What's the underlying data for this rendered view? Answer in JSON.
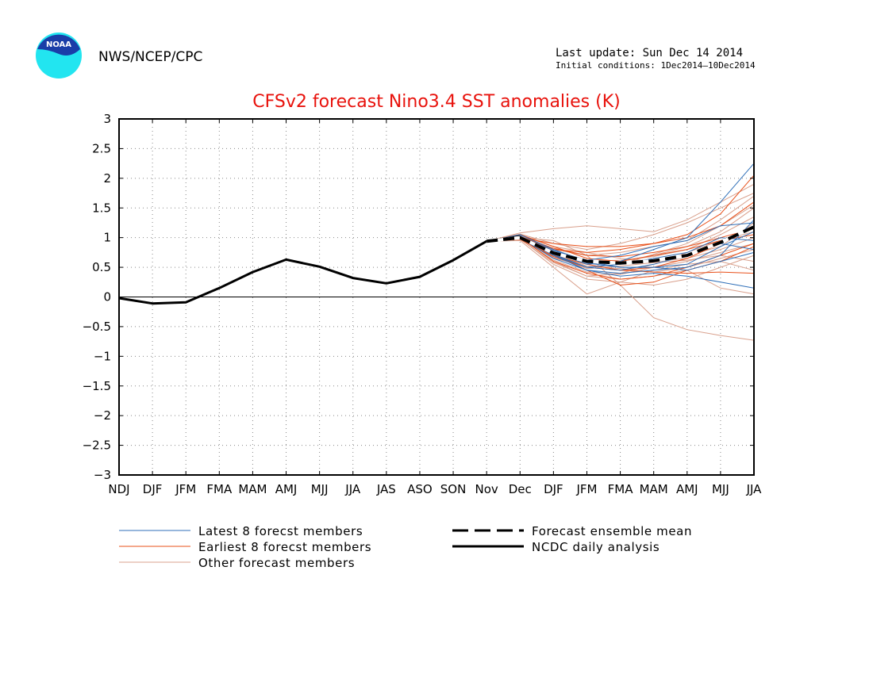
{
  "header": {
    "organization": "NWS/NCEP/CPC",
    "last_update": "Last update: Sun Dec 14 2014",
    "initial_conditions": "Initial conditions:  1Dec2014–10Dec2014",
    "logo_icon": "noaa-logo-icon",
    "logo_text": "NOAA"
  },
  "colors": {
    "title": "#e8120c",
    "latest": "#2f6fb8",
    "earliest": "#e8501a",
    "other": "#d9a08c",
    "analysis": "#000000"
  },
  "chart_data": {
    "type": "line",
    "title": "CFSv2 forecast Nino3.4 SST anomalies (K)",
    "xlabel": "",
    "ylabel": "",
    "ylim": [
      -3,
      3
    ],
    "yticks": [
      "3",
      "2.5",
      "2",
      "1.5",
      "1",
      "0.5",
      "0",
      "−0.5",
      "−1",
      "−1.5",
      "−2",
      "−2.5",
      "−3"
    ],
    "ytick_values": [
      3,
      2.5,
      2,
      1.5,
      1,
      0.5,
      0,
      -0.5,
      -1,
      -1.5,
      -2,
      -2.5,
      -3
    ],
    "categories": [
      "NDJ",
      "DJF",
      "JFM",
      "FMA",
      "MAM",
      "AMJ",
      "MJJ",
      "JJA",
      "JAS",
      "ASO",
      "SON",
      "Nov",
      "Dec",
      "DJF",
      "JFM",
      "FMA",
      "MAM",
      "AMJ",
      "MJJ",
      "JJA"
    ],
    "grid": true,
    "legend_position": "bottom",
    "legend": {
      "latest": "Latest 8 forecst members",
      "earliest": "Earliest 8 forecst members",
      "other": "Other forecast members",
      "mean": "Forecast ensemble mean",
      "analysis": "NCDC daily analysis"
    },
    "analysis": {
      "x": [
        0,
        1,
        2,
        3,
        4,
        5,
        6,
        7,
        8,
        9,
        10,
        11,
        12
      ],
      "values": [
        -0.02,
        -0.11,
        -0.09,
        0.15,
        0.42,
        0.63,
        0.51,
        0.32,
        0.23,
        0.34,
        0.62,
        0.94,
        1.02
      ]
    },
    "forecast_mean": {
      "x": [
        11,
        12,
        13,
        14,
        15,
        16,
        17,
        18,
        19
      ],
      "values": [
        0.94,
        1.0,
        0.74,
        0.6,
        0.57,
        0.61,
        0.7,
        0.92,
        1.18
      ]
    },
    "forecast_x": [
      11,
      12,
      13,
      14,
      15,
      16,
      17,
      18,
      19
    ],
    "latest_members": [
      [
        0.94,
        1.02,
        0.75,
        0.55,
        0.6,
        0.8,
        1.0,
        1.6,
        2.25
      ],
      [
        0.94,
        1.0,
        0.7,
        0.45,
        0.4,
        0.45,
        0.5,
        0.7,
        1.3
      ],
      [
        0.94,
        1.05,
        0.8,
        0.6,
        0.5,
        0.5,
        0.55,
        0.85,
        1.1
      ],
      [
        0.94,
        0.98,
        0.72,
        0.5,
        0.55,
        0.65,
        0.75,
        1.0,
        0.95
      ],
      [
        0.94,
        1.0,
        0.65,
        0.45,
        0.35,
        0.4,
        0.35,
        0.25,
        0.15
      ],
      [
        0.94,
        1.02,
        0.78,
        0.62,
        0.7,
        0.85,
        0.95,
        1.2,
        1.25
      ],
      [
        0.94,
        1.03,
        0.7,
        0.5,
        0.45,
        0.55,
        0.7,
        0.9,
        0.8
      ],
      [
        0.94,
        1.0,
        0.74,
        0.57,
        0.5,
        0.5,
        0.45,
        0.6,
        0.75
      ]
    ],
    "earliest_members": [
      [
        0.94,
        1.0,
        0.9,
        0.85,
        0.85,
        0.9,
        1.05,
        1.4,
        2.05
      ],
      [
        0.94,
        1.02,
        0.8,
        0.75,
        0.8,
        0.9,
        1.0,
        1.2,
        1.6
      ],
      [
        0.94,
        0.98,
        0.7,
        0.55,
        0.45,
        0.5,
        0.65,
        0.9,
        1.2
      ],
      [
        0.94,
        1.05,
        0.85,
        0.65,
        0.6,
        0.7,
        0.8,
        0.95,
        1.05
      ],
      [
        0.94,
        1.0,
        0.6,
        0.4,
        0.3,
        0.35,
        0.5,
        0.7,
        0.9
      ],
      [
        0.94,
        0.97,
        0.68,
        0.5,
        0.45,
        0.42,
        0.4,
        0.42,
        0.4
      ],
      [
        0.94,
        1.02,
        0.82,
        0.7,
        0.68,
        0.75,
        0.85,
        1.0,
        1.15
      ],
      [
        0.94,
        1.0,
        0.72,
        0.45,
        0.2,
        0.25,
        0.45,
        0.6,
        0.85
      ]
    ],
    "other_members": [
      [
        0.94,
        1.0,
        0.95,
        0.7,
        0.2,
        -0.35,
        -0.55,
        -0.65,
        -0.73
      ],
      [
        0.94,
        1.08,
        1.15,
        1.2,
        1.15,
        1.1,
        1.3,
        1.6,
        1.9
      ],
      [
        0.94,
        0.95,
        0.5,
        0.05,
        0.25,
        0.45,
        0.55,
        0.6,
        0.45
      ],
      [
        0.94,
        1.0,
        0.6,
        0.35,
        0.3,
        0.35,
        0.45,
        0.15,
        0.05
      ],
      [
        0.94,
        1.03,
        0.8,
        0.7,
        0.75,
        0.85,
        0.95,
        1.3,
        1.7
      ],
      [
        0.94,
        0.98,
        0.55,
        0.3,
        0.25,
        0.2,
        0.3,
        0.5,
        0.7
      ],
      [
        0.94,
        1.01,
        0.7,
        0.55,
        0.6,
        0.7,
        0.85,
        1.1,
        1.5
      ],
      [
        0.94,
        1.04,
        0.85,
        0.75,
        0.65,
        0.6,
        0.65,
        0.8,
        1.0
      ],
      [
        0.94,
        0.99,
        0.62,
        0.42,
        0.38,
        0.5,
        0.6,
        0.75,
        0.9
      ],
      [
        0.94,
        1.02,
        0.76,
        0.6,
        0.62,
        0.68,
        0.8,
        1.05,
        1.35
      ],
      [
        0.94,
        1.0,
        0.68,
        0.48,
        0.52,
        0.58,
        0.62,
        0.7,
        0.6
      ],
      [
        0.94,
        1.06,
        0.9,
        0.8,
        0.9,
        1.05,
        1.25,
        1.5,
        1.75
      ],
      [
        0.94,
        0.97,
        0.58,
        0.35,
        0.4,
        0.55,
        0.75,
        0.95,
        1.1
      ],
      [
        0.94,
        1.01,
        0.72,
        0.52,
        0.48,
        0.42,
        0.5,
        0.65,
        0.8
      ],
      [
        0.94,
        1.03,
        0.78,
        0.62,
        0.58,
        0.62,
        0.7,
        0.85,
        1.25
      ],
      [
        0.94,
        0.99,
        0.66,
        0.5,
        0.55,
        0.72,
        0.9,
        1.2,
        1.55
      ]
    ]
  }
}
